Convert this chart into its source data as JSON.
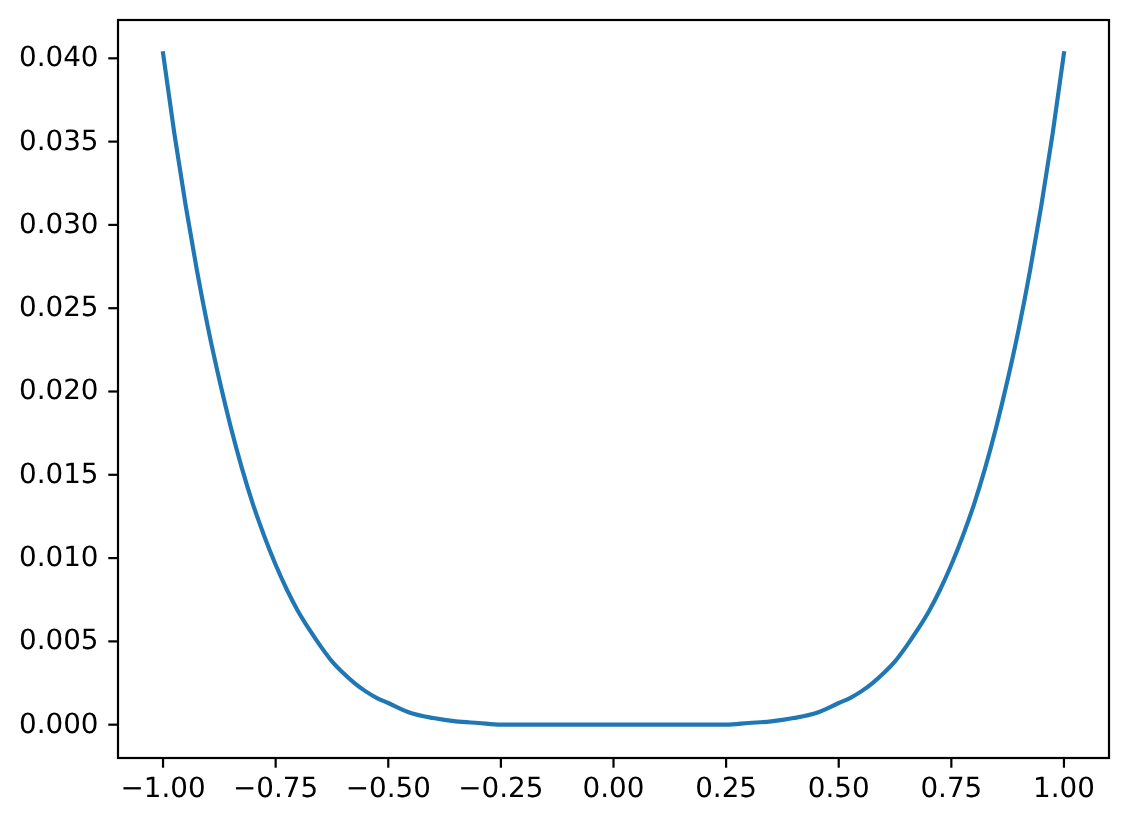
{
  "chart_data": {
    "type": "line",
    "x": [
      -1,
      -0.975,
      -0.95,
      -0.925,
      -0.9,
      -0.875,
      -0.85,
      -0.825,
      -0.8,
      -0.775,
      -0.75,
      -0.725,
      -0.7,
      -0.675,
      -0.65,
      -0.625,
      -0.6,
      -0.575,
      -0.55,
      -0.525,
      -0.5,
      -0.45,
      -0.4,
      -0.35,
      -0.3,
      -0.25,
      -0.2,
      -0.15,
      -0.1,
      -0.05,
      0,
      0.05,
      0.1,
      0.15,
      0.2,
      0.25,
      0.3,
      0.35,
      0.4,
      0.45,
      0.5,
      0.525,
      0.55,
      0.575,
      0.6,
      0.625,
      0.65,
      0.675,
      0.7,
      0.725,
      0.75,
      0.775,
      0.8,
      0.825,
      0.85,
      0.875,
      0.9,
      0.925,
      0.95,
      0.975,
      1
    ],
    "series": [
      {
        "color": "#1f77b4",
        "values": [
          0.0403,
          0.0355,
          0.0312,
          0.0273,
          0.0238,
          0.0207,
          0.0179,
          0.0154,
          0.0132,
          0.0113,
          0.0096,
          0.0081,
          0.0068,
          0.0057,
          0.0047,
          0.0038,
          0.0031,
          0.0025,
          0.002,
          0.0016,
          0.0013,
          0.0007,
          0.0004,
          0.0002,
          0.0001,
          0,
          0,
          0,
          0,
          0,
          0,
          0,
          0,
          0,
          0,
          0,
          0.0001,
          0.0002,
          0.0004,
          0.0007,
          0.0013,
          0.0016,
          0.002,
          0.0025,
          0.0031,
          0.0038,
          0.0047,
          0.0057,
          0.0068,
          0.0081,
          0.0096,
          0.0113,
          0.0132,
          0.0154,
          0.0179,
          0.0207,
          0.0238,
          0.0273,
          0.0312,
          0.0355,
          0.0403
        ]
      }
    ],
    "xlim": [
      -1.1,
      1.1
    ],
    "ylim": [
      -0.002,
      0.0423
    ],
    "xticks": [
      {
        "value": -1,
        "label": "−1.00"
      },
      {
        "value": -0.75,
        "label": "−0.75"
      },
      {
        "value": -0.5,
        "label": "−0.50"
      },
      {
        "value": -0.25,
        "label": "−0.25"
      },
      {
        "value": 0,
        "label": "0.00"
      },
      {
        "value": 0.25,
        "label": "0.25"
      },
      {
        "value": 0.5,
        "label": "0.50"
      },
      {
        "value": 0.75,
        "label": "0.75"
      },
      {
        "value": 1,
        "label": "1.00"
      }
    ],
    "yticks": [
      {
        "value": 0,
        "label": "0.000"
      },
      {
        "value": 0.005,
        "label": "0.005"
      },
      {
        "value": 0.01,
        "label": "0.010"
      },
      {
        "value": 0.015,
        "label": "0.015"
      },
      {
        "value": 0.02,
        "label": "0.020"
      },
      {
        "value": 0.025,
        "label": "0.025"
      },
      {
        "value": 0.03,
        "label": "0.030"
      },
      {
        "value": 0.035,
        "label": "0.035"
      },
      {
        "value": 0.04,
        "label": "0.040"
      }
    ]
  }
}
